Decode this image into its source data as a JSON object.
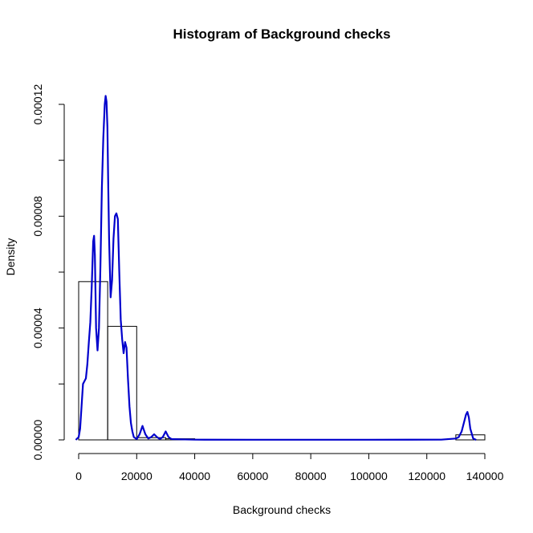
{
  "chart_data": {
    "type": "histogram",
    "title": "Histogram of Background checks",
    "xlabel": "Background checks",
    "ylabel": "Density",
    "xlim": [
      0,
      140000
    ],
    "ylim": [
      0,
      0.00012
    ],
    "x_ticks": [
      0,
      20000,
      40000,
      60000,
      80000,
      100000,
      120000,
      140000
    ],
    "x_tick_labels": [
      "0",
      "20000",
      "40000",
      "60000",
      "80000",
      "100000",
      "120000",
      "140000"
    ],
    "y_ticks": [
      0,
      2e-05,
      4e-05,
      6e-05,
      8e-05,
      0.0001,
      0.00012
    ],
    "y_tick_labels": [
      "0.00000",
      "",
      "0.00004",
      "",
      "0.00008",
      "",
      "0.00012"
    ],
    "grid": false,
    "bins": [
      {
        "x0": 0,
        "x1": 10000,
        "density": 5.66e-05
      },
      {
        "x0": 10000,
        "x1": 20000,
        "density": 4.06e-05
      },
      {
        "x0": 20000,
        "x1": 30000,
        "density": 8e-07
      },
      {
        "x0": 30000,
        "x1": 40000,
        "density": 4e-07
      },
      {
        "x0": 130000,
        "x1": 140000,
        "density": 1.8e-06
      }
    ],
    "density_curve": {
      "color": "#0000cc",
      "x": [
        -1000,
        0,
        500,
        1000,
        1500,
        2000,
        2500,
        3000,
        3500,
        4000,
        4500,
        5000,
        5300,
        5600,
        6000,
        6500,
        7000,
        7500,
        8000,
        8500,
        9000,
        9300,
        9600,
        9900,
        10200,
        10500,
        11000,
        11500,
        12000,
        12500,
        13000,
        13500,
        14000,
        14500,
        15000,
        15500,
        16000,
        16500,
        17000,
        17500,
        18000,
        18500,
        19000,
        20000,
        21000,
        22000,
        23000,
        24000,
        25000,
        26000,
        27000,
        28000,
        29000,
        30000,
        31000,
        32000,
        35000,
        40000,
        60000,
        100000,
        125000,
        130000,
        131000,
        132000,
        133000,
        133500,
        134000,
        134500,
        135000,
        136000,
        137000
      ],
      "y": [
        0,
        1e-06,
        4e-06,
        1.2e-05,
        2e-05,
        2.1e-05,
        2.2e-05,
        2.7e-05,
        3.5e-05,
        4.2e-05,
        5.5e-05,
        7.1e-05,
        7.3e-05,
        6.6e-05,
        4e-05,
        3.2e-05,
        4e-05,
        6.2e-05,
        9e-05,
        0.000108,
        0.00012,
        0.000123,
        0.000121,
        0.000112,
        9e-05,
        7.2e-05,
        5.1e-05,
        5.7e-05,
        7.2e-05,
        8e-05,
        8.1e-05,
        7.9e-05,
        6e-05,
        4.3e-05,
        3.6e-05,
        3.1e-05,
        3.5e-05,
        3.3e-05,
        2.2e-05,
        1.2e-05,
        6e-06,
        3e-06,
        1e-06,
        3e-07,
        2e-06,
        5e-06,
        2e-06,
        5e-07,
        1e-06,
        2e-06,
        1e-06,
        3e-07,
        1e-06,
        3e-06,
        1e-06,
        3e-07,
        2e-07,
        1e-07,
        5e-08,
        5e-08,
        1e-07,
        5e-07,
        1e-06,
        3e-06,
        7e-06,
        9e-06,
        1e-05,
        8e-06,
        4e-06,
        5e-07,
        0
      ]
    }
  }
}
